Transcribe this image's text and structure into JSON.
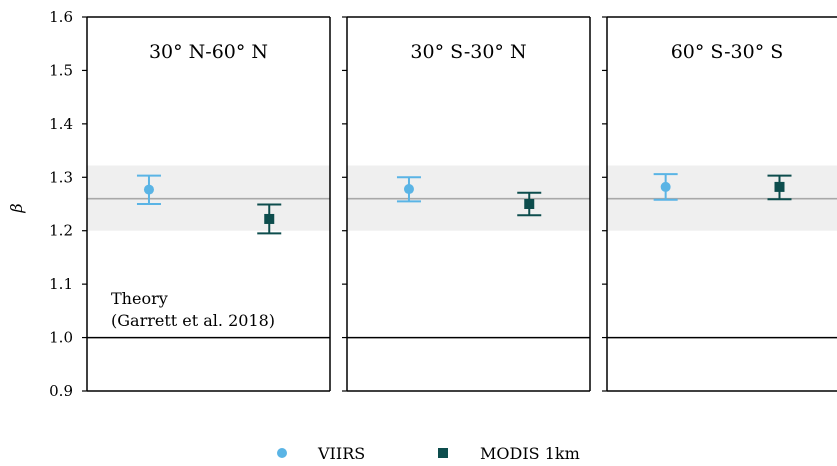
{
  "chart_data": {
    "type": "scatter",
    "ylabel": "β",
    "ylim": [
      0.9,
      1.6
    ],
    "yticks": [
      "0.9",
      "1.0",
      "1.1",
      "1.2",
      "1.3",
      "1.4",
      "1.5",
      "1.6"
    ],
    "grid": false,
    "legend_position": "bottom-center",
    "reference": {
      "beta_line": 1.26,
      "band": [
        1.2,
        1.322
      ],
      "baseline": 1.0,
      "annotation": [
        "Theory",
        "(Garrett et al. 2018)"
      ]
    },
    "panels": [
      {
        "title": "30° N-60° N"
      },
      {
        "title": "30° S-30° N"
      },
      {
        "title": "60° S-30° S"
      }
    ],
    "series": [
      {
        "name": "VIIRS",
        "marker": "circle",
        "color": "#5ab4e5",
        "values": [
          1.277,
          1.278,
          1.282
        ],
        "lower": [
          1.25,
          1.255,
          1.258
        ],
        "upper": [
          1.303,
          1.3,
          1.306
        ]
      },
      {
        "name": "MODIS 1km",
        "marker": "square",
        "color": "#0d4d4d",
        "values": [
          1.222,
          1.25,
          1.282
        ],
        "lower": [
          1.195,
          1.229,
          1.259
        ],
        "upper": [
          1.249,
          1.271,
          1.303
        ]
      }
    ]
  }
}
